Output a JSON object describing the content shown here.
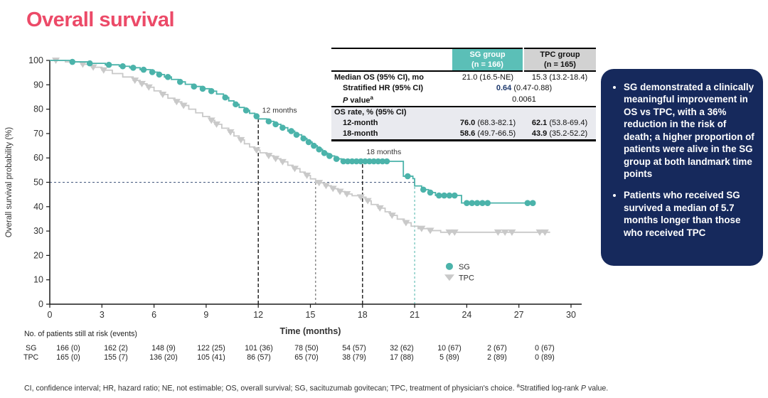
{
  "title": "Overall survival",
  "colors": {
    "title_pink": "#EC4A68",
    "sg_teal": "#4BB3AA",
    "tpc_gray": "#C9C9C9",
    "header_teal": "#5BBFB7",
    "header_gray": "#D2D2D2",
    "section_bg": "#E9EAEF",
    "hr_navy": "#1F3A6E",
    "callout_navy": "#16295C"
  },
  "stats_table": {
    "col_headers": [
      {
        "line1": "SG group",
        "line2": "(n = 166)"
      },
      {
        "line1": "TPC group",
        "line2": "(n = 165)"
      }
    ],
    "median_row": {
      "label": "Median OS (95% CI), mo",
      "sg": "21.0 (16.5-NE)",
      "tpc": "15.3 (13.2-18.4)"
    },
    "hr_row": {
      "label": "Stratified HR (95% CI)",
      "bold": "0.64",
      "rest": " (0.47-0.88)"
    },
    "p_row": {
      "label_italic": "P",
      "label_rest": " value",
      "sup": "a",
      "value": "0.0061"
    },
    "section_label": "OS rate, % (95% CI)",
    "rate_rows": [
      {
        "label": "12-month",
        "sg_bold": "76.0",
        "sg_rest": " (68.3-82.1)",
        "tpc_bold": "62.1",
        "tpc_rest": " (53.8-69.4)"
      },
      {
        "label": "18-month",
        "sg_bold": "58.6",
        "sg_rest": " (49.7-66.5)",
        "tpc_bold": "43.9",
        "tpc_rest": " (35.2-52.2)"
      }
    ]
  },
  "callout": {
    "bullets": [
      "SG demonstrated a clinically meaningful improvement in OS vs TPC, with a 36% reduction in the risk of death; a higher proportion of patients were alive in the SG group at both landmark time points",
      "Patients who received SG survived a median of 5.7 months longer than those who received TPC"
    ]
  },
  "risk_table": {
    "title": "No. of patients still at risk (events)",
    "rows": [
      {
        "label": "SG",
        "values": [
          "166 (0)",
          "162 (2)",
          "148 (9)",
          "122 (25)",
          "101 (36)",
          "78 (50)",
          "54 (57)",
          "32 (62)",
          "10 (67)",
          "2 (67)",
          "0 (67)"
        ]
      },
      {
        "label": "TPC",
        "values": [
          "165 (0)",
          "155 (7)",
          "136 (20)",
          "105 (41)",
          "86 (57)",
          "65 (70)",
          "38 (79)",
          "17 (88)",
          "5 (89)",
          "2 (89)",
          "0 (89)"
        ]
      }
    ]
  },
  "footnote": {
    "abbrev": "CI, confidence interval; HR, hazard ratio; NE, not estimable; OS, overall survival; SG, sacituzumab govitecan; TPC, treatment of physician's choice. ",
    "sup": "a",
    "note_pre": "Stratified log-rank ",
    "note_italic": "P",
    "note_post": " value."
  },
  "chart_data": {
    "type": "line",
    "subtype": "kaplan-meier-step",
    "title": "Overall survival",
    "xlabel": "Time (months)",
    "ylabel": "Overall survival probability (%)",
    "xlim": [
      0,
      30
    ],
    "ylim": [
      0,
      100
    ],
    "xticks": [
      0,
      3,
      6,
      9,
      12,
      15,
      18,
      21,
      24,
      27,
      30
    ],
    "yticks": [
      0,
      10,
      20,
      30,
      40,
      50,
      60,
      70,
      80,
      90,
      100
    ],
    "grid": false,
    "legend_position": "inside-lower-right",
    "medians_months": {
      "SG": 21.0,
      "TPC": 15.3
    },
    "os_rate_pct": {
      "SG_12mo": 76.0,
      "SG_18mo": 58.6,
      "TPC_12mo": 62.1,
      "TPC_18mo": 43.9
    },
    "series": [
      {
        "name": "SG",
        "color": "#4BB3AA",
        "marker": "circle",
        "end": 27.9,
        "steps": [
          [
            0,
            100
          ],
          [
            1.2,
            99.4
          ],
          [
            2.2,
            98.8
          ],
          [
            3.2,
            98.2
          ],
          [
            4.0,
            97.6
          ],
          [
            4.6,
            97.0
          ],
          [
            5.2,
            96.2
          ],
          [
            5.8,
            95.2
          ],
          [
            6.2,
            94.2
          ],
          [
            6.6,
            93.2
          ],
          [
            7.0,
            92.2
          ],
          [
            7.4,
            91.2
          ],
          [
            7.8,
            90.2
          ],
          [
            8.2,
            89.3
          ],
          [
            8.7,
            88.4
          ],
          [
            9.2,
            87.4
          ],
          [
            9.6,
            86.2
          ],
          [
            10.0,
            84.8
          ],
          [
            10.3,
            83.4
          ],
          [
            10.6,
            82.0
          ],
          [
            10.9,
            80.7
          ],
          [
            11.2,
            79.5
          ],
          [
            11.5,
            78.3
          ],
          [
            11.8,
            77.1
          ],
          [
            12.0,
            76.0
          ],
          [
            12.5,
            75.0
          ],
          [
            12.9,
            73.8
          ],
          [
            13.3,
            72.4
          ],
          [
            13.7,
            71.0
          ],
          [
            14.1,
            69.5
          ],
          [
            14.5,
            68.0
          ],
          [
            14.8,
            66.5
          ],
          [
            15.1,
            65.0
          ],
          [
            15.4,
            63.5
          ],
          [
            15.7,
            62.0
          ],
          [
            16.0,
            60.8
          ],
          [
            16.4,
            59.6
          ],
          [
            16.8,
            58.6
          ],
          [
            20.35,
            52.5
          ],
          [
            20.9,
            51.5
          ],
          [
            21.0,
            48.5
          ],
          [
            21.4,
            47.0
          ],
          [
            21.8,
            45.8
          ],
          [
            22.2,
            44.6
          ],
          [
            23.7,
            41.5
          ]
        ],
        "censors": [
          [
            1.3,
            99.4
          ],
          [
            2.3,
            98.8
          ],
          [
            3.4,
            98.2
          ],
          [
            4.2,
            97.6
          ],
          [
            4.8,
            97.0
          ],
          [
            5.4,
            96.2
          ],
          [
            5.9,
            95.2
          ],
          [
            6.3,
            94.2
          ],
          [
            6.8,
            93.2
          ],
          [
            7.5,
            91.2
          ],
          [
            8.3,
            89.3
          ],
          [
            8.8,
            88.4
          ],
          [
            9.3,
            87.4
          ],
          [
            10.1,
            84.8
          ],
          [
            10.7,
            82.0
          ],
          [
            11.3,
            79.5
          ],
          [
            11.9,
            77.1
          ],
          [
            12.6,
            75.0
          ],
          [
            13.0,
            73.8
          ],
          [
            13.4,
            72.4
          ],
          [
            13.9,
            71.0
          ],
          [
            14.2,
            69.5
          ],
          [
            14.6,
            68.0
          ],
          [
            14.9,
            66.5
          ],
          [
            15.2,
            65.0
          ],
          [
            15.5,
            63.5
          ],
          [
            15.8,
            62.0
          ],
          [
            16.1,
            60.8
          ],
          [
            16.5,
            59.6
          ],
          [
            16.9,
            58.6
          ],
          [
            17.15,
            58.6
          ],
          [
            17.4,
            58.6
          ],
          [
            17.65,
            58.6
          ],
          [
            17.9,
            58.6
          ],
          [
            18.15,
            58.6
          ],
          [
            18.4,
            58.6
          ],
          [
            18.65,
            58.6
          ],
          [
            18.9,
            58.6
          ],
          [
            19.15,
            58.6
          ],
          [
            19.4,
            58.6
          ],
          [
            20.6,
            52.5
          ],
          [
            21.5,
            47.0
          ],
          [
            21.9,
            45.8
          ],
          [
            22.4,
            44.6
          ],
          [
            22.7,
            44.6
          ],
          [
            23.0,
            44.6
          ],
          [
            23.3,
            44.6
          ],
          [
            24.0,
            41.5
          ],
          [
            24.3,
            41.5
          ],
          [
            24.6,
            41.5
          ],
          [
            24.9,
            41.5
          ],
          [
            25.2,
            41.5
          ],
          [
            27.5,
            41.5
          ],
          [
            27.8,
            41.5
          ]
        ]
      },
      {
        "name": "TPC",
        "color": "#C9C9C9",
        "marker": "triangle",
        "end": 28.8,
        "steps": [
          [
            0,
            100
          ],
          [
            0.9,
            99.4
          ],
          [
            1.8,
            98.4
          ],
          [
            2.4,
            97.2
          ],
          [
            3.0,
            96.0
          ],
          [
            3.6,
            94.6
          ],
          [
            4.2,
            93.2
          ],
          [
            4.8,
            91.8
          ],
          [
            5.2,
            90.4
          ],
          [
            5.6,
            89.0
          ],
          [
            6.0,
            87.5
          ],
          [
            6.4,
            86.0
          ],
          [
            6.8,
            84.5
          ],
          [
            7.2,
            83.0
          ],
          [
            7.6,
            81.5
          ],
          [
            8.0,
            80.0
          ],
          [
            8.4,
            78.5
          ],
          [
            8.8,
            77.0
          ],
          [
            9.2,
            75.4
          ],
          [
            9.5,
            73.8
          ],
          [
            9.9,
            72.2
          ],
          [
            10.3,
            70.6
          ],
          [
            10.6,
            69.0
          ],
          [
            10.9,
            67.4
          ],
          [
            11.2,
            65.8
          ],
          [
            11.5,
            64.5
          ],
          [
            11.8,
            63.2
          ],
          [
            12.1,
            62.1
          ],
          [
            12.5,
            60.9
          ],
          [
            12.9,
            59.7
          ],
          [
            13.3,
            58.4
          ],
          [
            13.7,
            57.0
          ],
          [
            14.0,
            55.6
          ],
          [
            14.4,
            54.2
          ],
          [
            14.7,
            52.8
          ],
          [
            15.0,
            51.4
          ],
          [
            15.3,
            49.8
          ],
          [
            15.8,
            48.6
          ],
          [
            16.2,
            47.4
          ],
          [
            16.6,
            46.2
          ],
          [
            17.0,
            45.2
          ],
          [
            17.4,
            44.5
          ],
          [
            17.8,
            43.9
          ],
          [
            18.2,
            42.4
          ],
          [
            18.5,
            40.9
          ],
          [
            18.9,
            39.4
          ],
          [
            19.3,
            37.9
          ],
          [
            19.6,
            36.4
          ],
          [
            20.0,
            34.9
          ],
          [
            20.4,
            33.4
          ],
          [
            20.8,
            32.0
          ],
          [
            21.2,
            31.0
          ],
          [
            21.8,
            30.2
          ],
          [
            22.5,
            29.5
          ]
        ],
        "censors": [
          [
            0.35,
            100
          ],
          [
            1.9,
            98.4
          ],
          [
            2.5,
            97.2
          ],
          [
            3.1,
            96.0
          ],
          [
            4.9,
            91.8
          ],
          [
            5.3,
            90.4
          ],
          [
            5.7,
            89.0
          ],
          [
            6.5,
            86.0
          ],
          [
            7.3,
            83.0
          ],
          [
            7.7,
            81.5
          ],
          [
            9.3,
            75.4
          ],
          [
            9.6,
            73.8
          ],
          [
            10.4,
            70.6
          ],
          [
            11.0,
            67.4
          ],
          [
            11.9,
            63.2
          ],
          [
            12.6,
            60.9
          ],
          [
            13.0,
            59.7
          ],
          [
            13.4,
            58.4
          ],
          [
            14.1,
            55.6
          ],
          [
            14.8,
            52.8
          ],
          [
            15.5,
            49.8
          ],
          [
            15.9,
            48.6
          ],
          [
            16.3,
            47.4
          ],
          [
            16.7,
            46.2
          ],
          [
            17.1,
            45.2
          ],
          [
            17.9,
            43.9
          ],
          [
            18.3,
            42.4
          ],
          [
            19.0,
            39.4
          ],
          [
            19.7,
            36.4
          ],
          [
            20.5,
            33.4
          ],
          [
            21.4,
            31.0
          ],
          [
            21.9,
            30.2
          ],
          [
            23.0,
            29.5
          ],
          [
            23.3,
            29.5
          ],
          [
            25.8,
            29.5
          ],
          [
            26.2,
            29.5
          ],
          [
            26.6,
            29.5
          ],
          [
            28.2,
            29.5
          ],
          [
            28.5,
            29.5
          ]
        ]
      }
    ],
    "annotations": [
      {
        "text": "12 months",
        "x": 12.1,
        "y": 78.5
      },
      {
        "text": "18 months",
        "x": 18.1,
        "y": 61.5
      }
    ],
    "reference_lines": [
      {
        "type": "h",
        "y": 50,
        "x1": 0,
        "x2": 21,
        "color": "#44597E",
        "width": 0.9,
        "dash": "3 3"
      },
      {
        "type": "v",
        "x": 12,
        "y1": 0,
        "y2": 76,
        "color": "#1a1a1a",
        "width": 1.4,
        "dash": "5 3"
      },
      {
        "type": "v",
        "x": 15.3,
        "y1": 0,
        "y2": 50,
        "color": "#555555",
        "width": 1,
        "dash": "3 3"
      },
      {
        "type": "v",
        "x": 18,
        "y1": 0,
        "y2": 58.6,
        "color": "#1a1a1a",
        "width": 1.4,
        "dash": "5 3"
      },
      {
        "type": "v",
        "x": 21,
        "y1": 0,
        "y2": 50,
        "color": "#4BB3AA",
        "width": 1,
        "dash": "3 3"
      }
    ],
    "legend": {
      "x": 23.0,
      "y1": 15.5,
      "y2": 11.0,
      "items": [
        "SG",
        "TPC"
      ]
    }
  }
}
